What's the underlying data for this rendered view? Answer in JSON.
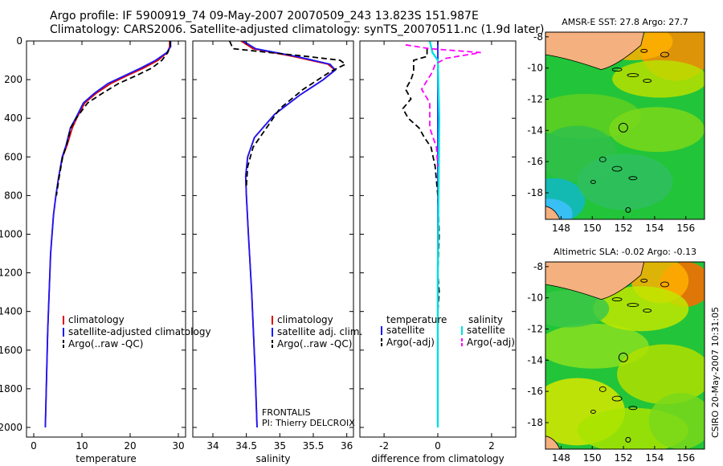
{
  "header": {
    "line1": "Argo profile: IF 5900919_74 09-May-2007 20070509_243 13.823S 151.987E",
    "line2": "Climatology: CARS2006. Satellite-adjusted climatology: synTS_20070511.nc (1.9d later)"
  },
  "footer": {
    "project": "FRONTALIS",
    "pi": "PI: Thierry DELCROIX",
    "stamp": "CSIRO 20-May-2007 10:31:05"
  },
  "colors": {
    "climatology": "#e00000",
    "satellite": "#1818ff",
    "argo": "#000000",
    "salinity_sat": "#00e0e0",
    "salinity_argo": "#ff00ff"
  },
  "chart_data": [
    {
      "type": "line",
      "panel": "temperature",
      "xlabel": "temperature",
      "xlim": [
        -1.5,
        31.5
      ],
      "ylim": [
        0,
        2050
      ],
      "y_reversed": true,
      "xticks": [
        0,
        10,
        20,
        30
      ],
      "yticks": [
        0,
        200,
        400,
        600,
        800,
        1000,
        1200,
        1400,
        1600,
        1800,
        2000
      ],
      "legend": [
        "climatology",
        "satellite-adjusted climatology",
        "Argo(..raw -QC)"
      ],
      "series": [
        {
          "name": "climatology",
          "style": "solid",
          "x": [
            28.2,
            28.2,
            27.7,
            25.8,
            22.8,
            19.3,
            16.0,
            13.0,
            10.6,
            8.9,
            8.0,
            6.9,
            6.0,
            5.2,
            4.6,
            4.1,
            3.5,
            3.2,
            2.9,
            2.7,
            2.4
          ],
          "y": [
            0,
            30,
            60,
            100,
            140,
            180,
            220,
            270,
            320,
            400,
            450,
            540,
            600,
            700,
            800,
            900,
            1100,
            1300,
            1500,
            1700,
            2000
          ]
        },
        {
          "name": "satellite-adjusted climatology",
          "style": "solid",
          "x": [
            28.4,
            28.4,
            27.6,
            25.3,
            22.2,
            18.8,
            15.4,
            12.6,
            10.3,
            8.7,
            7.6,
            6.7,
            5.9,
            5.2,
            4.6,
            4.1,
            3.5,
            3.2,
            2.9,
            2.7,
            2.4
          ],
          "y": [
            0,
            30,
            60,
            100,
            140,
            180,
            220,
            270,
            320,
            400,
            450,
            540,
            600,
            700,
            800,
            900,
            1100,
            1300,
            1500,
            1700,
            2000
          ]
        },
        {
          "name": "Argo(..raw -QC)",
          "style": "dashed",
          "x": [
            28.3,
            28.3,
            27.8,
            26.6,
            24.5,
            21.2,
            17.6,
            14.3,
            11.2,
            8.8,
            7.7,
            6.8,
            6.0,
            5.3,
            4.7
          ],
          "y": [
            0,
            30,
            60,
            100,
            140,
            180,
            220,
            270,
            320,
            400,
            450,
            540,
            600,
            700,
            800
          ]
        }
      ]
    },
    {
      "type": "line",
      "panel": "salinity",
      "xlabel": "salinity",
      "xlim": [
        33.7,
        36.1
      ],
      "ylim": [
        0,
        2050
      ],
      "y_reversed": true,
      "xticks": [
        34,
        34.5,
        35,
        35.5,
        36
      ],
      "legend": [
        "climatology",
        "satellite adj. clim.",
        "Argo(..raw -QC)"
      ],
      "series": [
        {
          "name": "climatology",
          "style": "solid",
          "x": [
            34.42,
            34.6,
            35.2,
            35.72,
            35.82,
            35.65,
            35.3,
            34.92,
            34.62,
            34.52,
            34.49,
            34.5,
            34.53,
            34.58,
            34.63,
            34.66
          ],
          "y": [
            0,
            40,
            80,
            120,
            150,
            200,
            280,
            380,
            500,
            600,
            700,
            800,
            1000,
            1300,
            1700,
            2000
          ]
        },
        {
          "name": "satellite adj. clim.",
          "style": "solid",
          "x": [
            34.45,
            34.64,
            35.25,
            35.75,
            35.83,
            35.65,
            35.3,
            34.92,
            34.62,
            34.52,
            34.49,
            34.5,
            34.53,
            34.58,
            34.63,
            34.66
          ],
          "y": [
            0,
            40,
            80,
            120,
            150,
            200,
            280,
            380,
            500,
            600,
            700,
            800,
            1000,
            1300,
            1700,
            2000
          ]
        },
        {
          "name": "Argo(..raw -QC)",
          "style": "dashed",
          "x": [
            34.25,
            34.3,
            35.4,
            35.9,
            35.98,
            35.75,
            35.35,
            35.0,
            34.8,
            34.6,
            34.52,
            34.5
          ],
          "y": [
            0,
            40,
            80,
            100,
            120,
            160,
            250,
            350,
            450,
            550,
            650,
            750
          ]
        }
      ]
    },
    {
      "type": "line",
      "panel": "difference",
      "xlabel": "difference from climatology",
      "xlim": [
        -2.9,
        2.9
      ],
      "ylim": [
        0,
        2050
      ],
      "y_reversed": true,
      "xticks": [
        -2,
        0,
        2
      ],
      "legend_left_title": "temperature",
      "legend_right_title": "salinity",
      "legend": [
        "satellite",
        "Argo(-adj)",
        "satellite",
        "Argo(-adj)"
      ],
      "series": [
        {
          "name": "temperature satellite",
          "style": "solid",
          "color": "satellite",
          "x": [
            0.0,
            0.0,
            0.0,
            0.0,
            0.0,
            0.0
          ],
          "y": [
            0,
            300,
            700,
            1200,
            1600,
            2000
          ]
        },
        {
          "name": "temperature Argo(-adj)",
          "style": "dashed",
          "color": "argo",
          "x": [
            -0.4,
            -0.4,
            -0.9,
            -0.9,
            -1.0,
            -1.2,
            -1.0,
            -1.3,
            -1.1,
            -0.7,
            -0.5,
            -0.25,
            -0.1,
            0.0,
            0.05,
            0.0,
            0.05,
            0.0
          ],
          "y": [
            40,
            80,
            100,
            160,
            200,
            250,
            300,
            350,
            400,
            450,
            500,
            550,
            650,
            800,
            1000,
            1200,
            1300,
            1400
          ]
        },
        {
          "name": "salinity satellite",
          "style": "solid",
          "color": "salinity_sat",
          "x": [
            -0.3,
            -0.2,
            0.0,
            0.05,
            0.0,
            0.0
          ],
          "y": [
            0,
            60,
            100,
            400,
            1200,
            2000
          ]
        },
        {
          "name": "salinity Argo(-adj)",
          "style": "dashed",
          "color": "salinity_argo",
          "x": [
            -1.2,
            -0.3,
            1.6,
            0.3,
            -0.1,
            -0.2,
            -0.6,
            -0.3,
            -0.3,
            -0.05,
            0.0
          ],
          "y": [
            20,
            40,
            60,
            90,
            120,
            160,
            250,
            320,
            450,
            550,
            650
          ]
        }
      ]
    },
    {
      "type": "heatmap",
      "panel": "sst_map",
      "title": "AMSR-E SST: 27.8 Argo: 27.7",
      "xlim": [
        147,
        157.2
      ],
      "ylim": [
        -19.7,
        -7.7
      ],
      "xticks": [
        148,
        150,
        152,
        154,
        156
      ],
      "yticks": [
        -8,
        -10,
        -12,
        -14,
        -16,
        -18
      ],
      "markers": [
        {
          "x": 151.99,
          "y": -13.82,
          "size": "large"
        },
        {
          "x": 152.3,
          "y": -19.1,
          "size": "small"
        }
      ]
    },
    {
      "type": "heatmap",
      "panel": "sla_map",
      "title": "Altimetric SLA: -0.02 Argo: -0.13",
      "xlim": [
        147,
        157.2
      ],
      "ylim": [
        -19.7,
        -7.7
      ],
      "xticks": [
        148,
        150,
        152,
        154,
        156
      ],
      "yticks": [
        -8,
        -10,
        -12,
        -14,
        -16,
        -18
      ],
      "markers": [
        {
          "x": 151.99,
          "y": -13.82,
          "size": "large"
        },
        {
          "x": 152.3,
          "y": -19.1,
          "size": "small"
        }
      ]
    }
  ]
}
